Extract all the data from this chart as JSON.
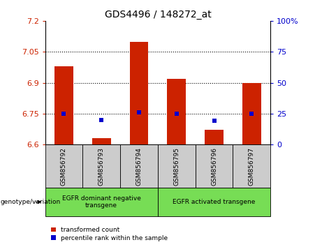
{
  "title": "GDS4496 / 148272_at",
  "samples": [
    "GSM856792",
    "GSM856793",
    "GSM856794",
    "GSM856795",
    "GSM856796",
    "GSM856797"
  ],
  "red_values": [
    6.98,
    6.63,
    7.1,
    6.92,
    6.67,
    6.9
  ],
  "blue_values": [
    6.75,
    6.72,
    6.755,
    6.748,
    6.715,
    6.75
  ],
  "ylim_left": [
    6.6,
    7.2
  ],
  "ylim_right": [
    0,
    100
  ],
  "yticks_left": [
    6.6,
    6.75,
    6.9,
    7.05,
    7.2
  ],
  "yticks_right": [
    0,
    25,
    50,
    75,
    100
  ],
  "ytick_labels_left": [
    "6.6",
    "6.75",
    "6.9",
    "7.05",
    "7.2"
  ],
  "ytick_labels_right": [
    "0",
    "25",
    "50",
    "75",
    "100%"
  ],
  "hlines": [
    6.75,
    6.9,
    7.05
  ],
  "bar_bottom": 6.6,
  "group1_label": "EGFR dominant negative\ntransgene",
  "group2_label": "EGFR activated transgene",
  "genotype_label": "genotype/variation",
  "legend_red": "transformed count",
  "legend_blue": "percentile rank within the sample",
  "left_color": "#cc2200",
  "blue_color": "#0000cc",
  "group_bg": "#77dd55",
  "sample_bg": "#cccccc",
  "bar_width": 0.5,
  "blue_marker_size": 4
}
